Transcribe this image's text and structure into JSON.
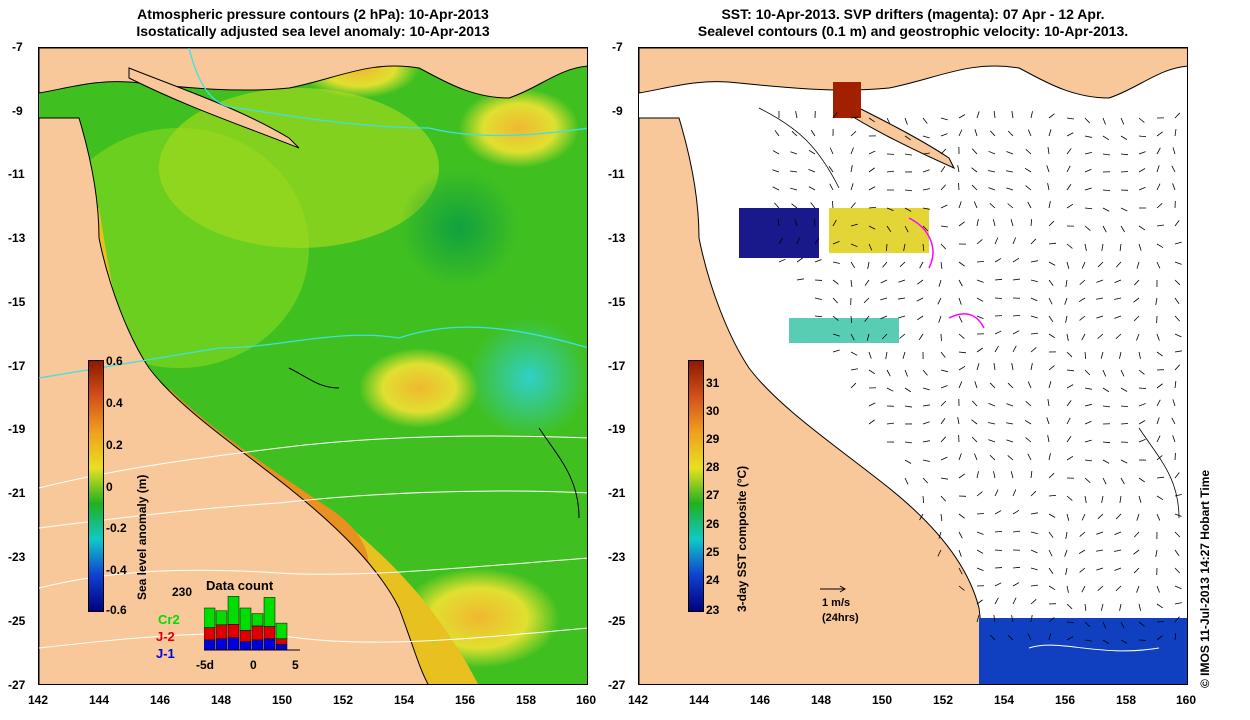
{
  "left_panel": {
    "title_line1": "Atmospheric pressure contours (2 hPa): 10-Apr-2013",
    "title_line2": "Isostatically adjusted sea level anomaly: 10-Apr-2013",
    "x_ticks": [
      "142",
      "144",
      "146",
      "148",
      "150",
      "152",
      "154",
      "156",
      "158",
      "160"
    ],
    "y_ticks": [
      "-7",
      "-9",
      "-11",
      "-13",
      "-15",
      "-17",
      "-19",
      "-21",
      "-23",
      "-25",
      "-27"
    ],
    "colorbar": {
      "label": "Sea level anomaly (m)",
      "ticks": [
        "0.6",
        "0.4",
        "0.2",
        "0",
        "-0.2",
        "-0.4",
        "-0.6"
      ],
      "colors": [
        "#8b1a00",
        "#d2501a",
        "#f0a020",
        "#e8e020",
        "#20b020",
        "#10c8c8",
        "#1040d0",
        "#000080"
      ]
    },
    "data_count": {
      "title": "Data count",
      "max_label": "230",
      "legend": [
        {
          "name": "Cr2",
          "color": "#00dd00"
        },
        {
          "name": "J-2",
          "color": "#dd0000"
        },
        {
          "name": "J-1",
          "color": "#0000dd"
        }
      ],
      "x_ticks": [
        "-5d",
        "0",
        "5"
      ],
      "bars": [
        {
          "j1": 0.18,
          "j2": 0.22,
          "cr2": 0.35
        },
        {
          "j1": 0.2,
          "j2": 0.25,
          "cr2": 0.25
        },
        {
          "j1": 0.22,
          "j2": 0.24,
          "cr2": 0.5
        },
        {
          "j1": 0.15,
          "j2": 0.2,
          "cr2": 0.4
        },
        {
          "j1": 0.18,
          "j2": 0.25,
          "cr2": 0.22
        },
        {
          "j1": 0.2,
          "j2": 0.22,
          "cr2": 0.52
        },
        {
          "j1": 0.1,
          "j2": 0.1,
          "cr2": 0.28
        }
      ]
    }
  },
  "right_panel": {
    "title_line1": "SST: 10-Apr-2013. SVP drifters (magenta): 07 Apr - 12 Apr.",
    "title_line2": "Sealevel contours (0.1 m) and geostrophic velocity: 10-Apr-2013.",
    "x_ticks": [
      "142",
      "144",
      "146",
      "148",
      "150",
      "152",
      "154",
      "156",
      "158",
      "160"
    ],
    "y_ticks": [
      "-7",
      "-9",
      "-11",
      "-13",
      "-15",
      "-17",
      "-19",
      "-21",
      "-23",
      "-25",
      "-27"
    ],
    "colorbar": {
      "label": "3-day SST composite (°C)",
      "ticks": [
        "31",
        "30",
        "29",
        "28",
        "27",
        "26",
        "25",
        "24",
        "23"
      ],
      "colors": [
        "#8b1a00",
        "#d2501a",
        "#f0a020",
        "#e8e020",
        "#20b020",
        "#10c8c8",
        "#1040d0",
        "#000080"
      ]
    },
    "velocity_scale": {
      "line1": "1 m/s",
      "line2": "(24hrs)"
    }
  },
  "credit": "© IMOS 11-Jul-2013 14:27 Hobart Time",
  "colors": {
    "land": "#f8c89a",
    "ocean_green": "#40c020",
    "ocean_yellow": "#d8e830",
    "pressure_contour": "#40e0e0",
    "coast": "#000000",
    "drifter": "#ff00ff"
  }
}
